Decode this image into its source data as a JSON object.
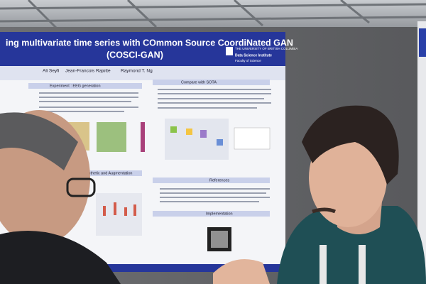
{
  "poster": {
    "title_line1": "ing multivariate time series with COmmon Source CoordiNated GAN",
    "title_line2": "(COSCI-GAN)",
    "university": "THE UNIVERSITY OF BRITISH COLUMBIA",
    "institute": "Data Science Institute",
    "faculty": "Faculty of Science",
    "authors": [
      "Ali Seyfi",
      "Jean-Francois Rajotte",
      "Raymond T. Ng"
    ],
    "sections": [
      "Experiment : EEG generation",
      "Compare with SOTA",
      "Synthetic and Augmentation",
      "References",
      "Implementation"
    ]
  }
}
